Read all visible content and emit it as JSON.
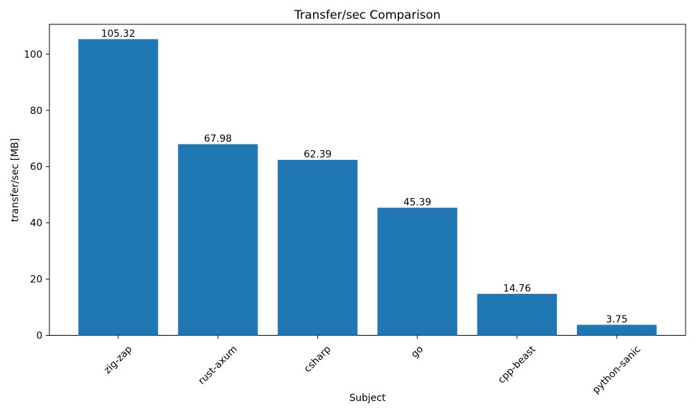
{
  "figure": {
    "background": "#ffffff"
  },
  "chart_data": {
    "type": "bar",
    "title": "Transfer/sec Comparison",
    "xlabel": "Subject",
    "ylabel": "transfer/sec [MB]",
    "categories": [
      "zig-zap",
      "rust-axum",
      "csharp",
      "go",
      "cpp-beast",
      "python-sanic"
    ],
    "values": [
      105.32,
      67.98,
      62.39,
      45.39,
      14.76,
      3.75
    ],
    "value_labels": [
      "105.32",
      "67.98",
      "62.39",
      "45.39",
      "14.76",
      "3.75"
    ],
    "series_name": "transfer/sec",
    "yticks": [
      0,
      20,
      40,
      60,
      80,
      100
    ],
    "ylim": [
      0,
      110.6
    ],
    "bar_color": "#1f77b4",
    "bar_width_fraction": 0.8,
    "xtick_rotation_deg": 45,
    "grid": false,
    "legend_position": "none"
  }
}
